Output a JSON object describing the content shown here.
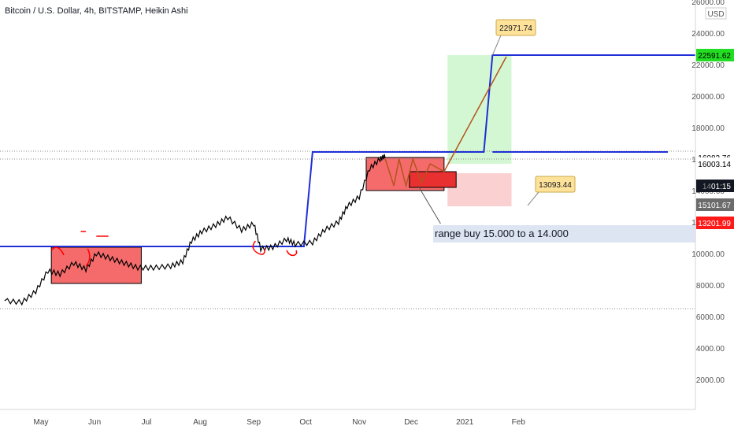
{
  "chart_title": "Bitcoin / U.S. Dollar, 4h, BITSTAMP, Heikin Ashi",
  "currency_badge": "USD",
  "colors": {
    "price": "#000000",
    "blue_line": "#1f2fd6",
    "red_box": "#f56b6b",
    "green_zone": "#c8f5c8",
    "pink_zone": "#f9c4c4",
    "projection": "#b5541c",
    "scribble": "#ff0000",
    "label_callout": "#ffe29a",
    "target_badge": "#22dd22",
    "stop_badge": "#ff1a1a",
    "dark_badge": "#131722",
    "grey_badge": "#6b6b6b"
  },
  "chart_data": {
    "type": "line",
    "title": "Bitcoin / U.S. Dollar, 4h, BITSTAMP, Heikin Ashi",
    "xlabel": "",
    "ylabel": "",
    "ylim": [
      0,
      26000
    ],
    "x_ticks": [
      "May",
      "Jun",
      "Jul",
      "Aug",
      "Sep",
      "Oct",
      "Nov",
      "Dec",
      "2021",
      "Feb"
    ],
    "y_ticks": [
      "26000.00",
      "24000.00",
      "22000.00",
      "20000.00",
      "18000.00",
      "16000.00",
      "14000.00",
      "12000.00",
      "10000.00",
      "8000.00",
      "6000.00",
      "4000.00",
      "2000.00"
    ],
    "series": [
      {
        "values": [
          [
            "2020-04-10",
            7000
          ],
          [
            "2020-04-20",
            6900
          ],
          [
            "2020-04-28",
            7600
          ],
          [
            "2020-05-05",
            8900
          ],
          [
            "2020-05-12",
            8700
          ],
          [
            "2020-05-20",
            9400
          ],
          [
            "2020-05-27",
            9000
          ],
          [
            "2020-06-02",
            10000
          ],
          [
            "2020-06-10",
            9700
          ],
          [
            "2020-06-18",
            9400
          ],
          [
            "2020-06-26",
            9100
          ],
          [
            "2020-07-05",
            9100
          ],
          [
            "2020-07-15",
            9200
          ],
          [
            "2020-07-22",
            9500
          ],
          [
            "2020-07-27",
            10800
          ],
          [
            "2020-08-02",
            11400
          ],
          [
            "2020-08-10",
            11800
          ],
          [
            "2020-08-17",
            12300
          ],
          [
            "2020-08-25",
            11500
          ],
          [
            "2020-09-01",
            11900
          ],
          [
            "2020-09-05",
            10300
          ],
          [
            "2020-09-12",
            10400
          ],
          [
            "2020-09-20",
            10900
          ],
          [
            "2020-09-25",
            10600
          ],
          [
            "2020-10-05",
            10700
          ],
          [
            "2020-10-12",
            11500
          ],
          [
            "2020-10-20",
            12000
          ],
          [
            "2020-10-25",
            13000
          ],
          [
            "2020-11-01",
            13600
          ],
          [
            "2020-11-07",
            15400
          ],
          [
            "2020-11-13",
            16000
          ],
          [
            "2020-11-16",
            16200
          ]
        ]
      }
    ],
    "current_price": 16083.76,
    "horizontal_levels": [
      10500,
      16500,
      16000,
      6500
    ],
    "annotations": {
      "target_label": "22971.74",
      "target_line_label": "22591.62",
      "stop_label": "13093.44",
      "text_note": "range buy 15.000 to a 14.000"
    },
    "price_badges": {
      "last": "16083.76",
      "second": "16003.14",
      "countdown_prefix": "14",
      "countdown": "01:15",
      "third": "15101.67",
      "stop": "13201.99",
      "target": "22591.62"
    },
    "grid": false,
    "legend": "none"
  }
}
